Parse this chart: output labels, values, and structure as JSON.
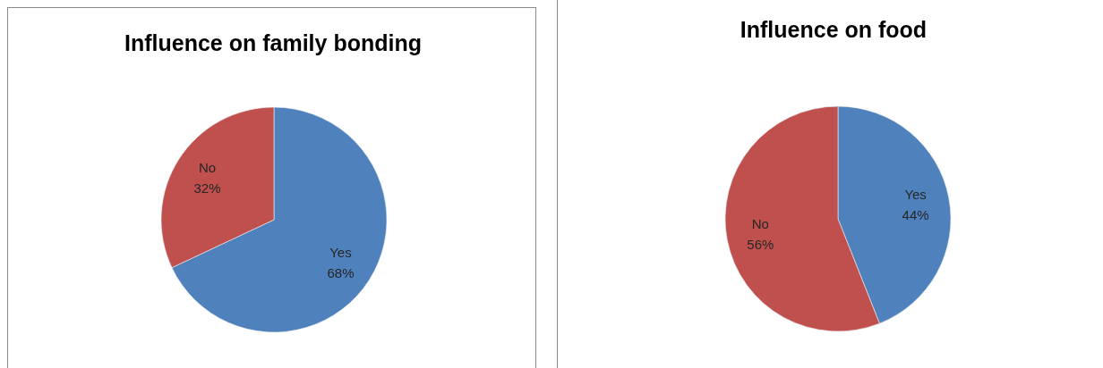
{
  "chart_data": [
    {
      "type": "pie",
      "title": "Influence on family bonding",
      "categories": [
        "Yes",
        "No"
      ],
      "values": [
        68,
        32
      ],
      "colors": [
        "#4f81bd",
        "#c0504d"
      ],
      "value_labels": [
        "68%",
        "32%"
      ]
    },
    {
      "type": "pie",
      "title": "Influence on food",
      "categories": [
        "Yes",
        "No"
      ],
      "values": [
        44,
        56
      ],
      "colors": [
        "#4f81bd",
        "#c0504d"
      ],
      "value_labels": [
        "44%",
        "56%"
      ]
    }
  ]
}
